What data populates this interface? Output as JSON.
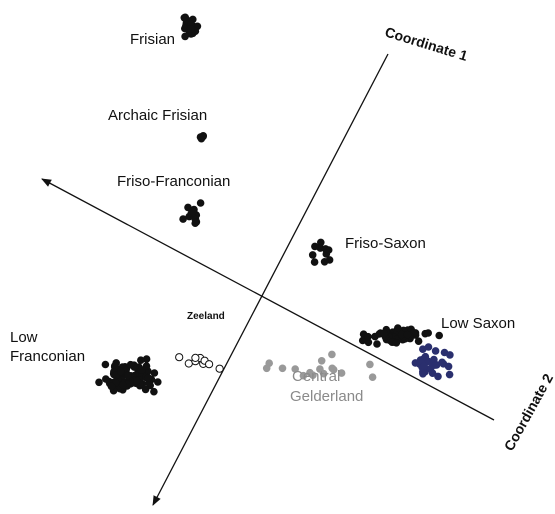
{
  "chart_data": {
    "type": "scatter",
    "axes": [
      "Coordinate 1",
      "Coordinate 2"
    ],
    "groups": [
      {
        "label": "Frisian",
        "color": "#111111",
        "fill": "filled"
      },
      {
        "label": "Archaic Frisian",
        "color": "#111111",
        "fill": "filled"
      },
      {
        "label": "Friso-Franconian",
        "color": "#111111",
        "fill": "filled"
      },
      {
        "label": "Friso-Saxon",
        "color": "#111111",
        "fill": "filled"
      },
      {
        "label": "Low Saxon",
        "color": "#111111",
        "fill": "filled"
      },
      {
        "label": "Low Saxon (blue subset)",
        "color": "#2a2f6e",
        "fill": "filled"
      },
      {
        "label": "Low Franconian",
        "color": "#111111",
        "fill": "filled"
      },
      {
        "label": "Zeeland",
        "color": "#111111",
        "fill": "open"
      },
      {
        "label": "Central Gelderland",
        "color": "#999999",
        "fill": "filled"
      }
    ]
  },
  "labels": {
    "frisian": "Frisian",
    "archaic_frisian": "Archaic Frisian",
    "friso_franconian": "Friso-Franconian",
    "friso_saxon": "Friso-Saxon",
    "low_saxon": "Low Saxon",
    "low_franconian_1": "Low",
    "low_franconian_2": "Franconian",
    "zeeland": "Zeeland",
    "central_gelderland_1": "Central",
    "central_gelderland_2": "Gelderland",
    "coordinate_1": "Coordinate 1",
    "coordinate_2": "Coordinate 2"
  }
}
